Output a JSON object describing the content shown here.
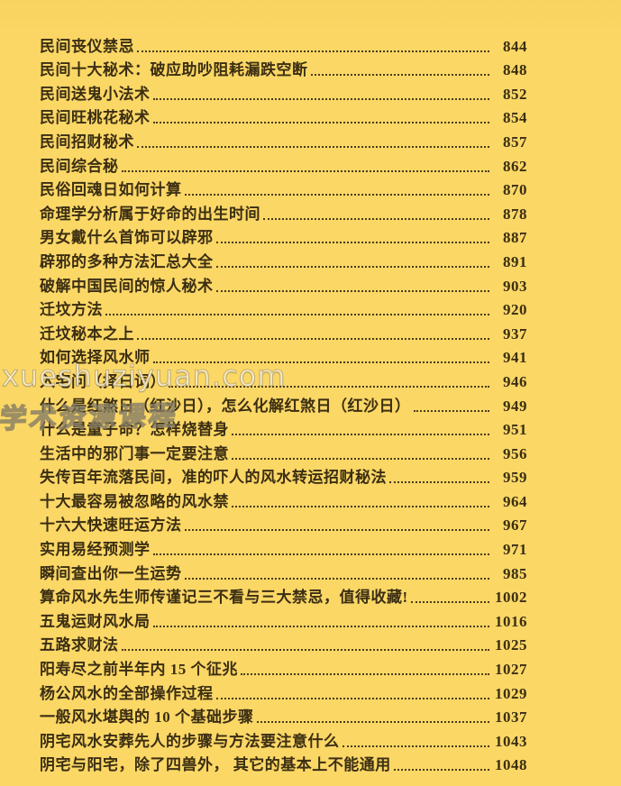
{
  "page": {
    "background_color": "#fbd766",
    "text_color": "#3b2e12",
    "dot_leader_color": "#4a3a18"
  },
  "watermarks": {
    "url_text": "xueshuziyuan.com",
    "course_text": "学术资源课程"
  },
  "toc": {
    "entries": [
      {
        "title": "民间丧仪禁忌",
        "page": "844"
      },
      {
        "title": "民间十大秘术：破应助吵阻耗漏跌空断",
        "page": "848"
      },
      {
        "title": "民间送鬼小法术",
        "page": "852"
      },
      {
        "title": "民间旺桃花秘术",
        "page": "854"
      },
      {
        "title": "民间招财秘术",
        "page": "857"
      },
      {
        "title": "民间综合秘",
        "page": "862"
      },
      {
        "title": "民俗回魂日如何计算",
        "page": "870"
      },
      {
        "title": "命理学分析属于好命的出生时间",
        "page": "878"
      },
      {
        "title": "男女戴什么首饰可以辟邪",
        "page": "887"
      },
      {
        "title": "辟邪的多种方法汇总大全",
        "page": "891"
      },
      {
        "title": "破解中国民间的惊人秘术",
        "page": "903"
      },
      {
        "title": "迁坟方法",
        "page": "920"
      },
      {
        "title": "迁坟秘本之上",
        "page": "937"
      },
      {
        "title": "如何选择风水师",
        "page": "941"
      },
      {
        "title": "入宅问（择日词）",
        "page": "946"
      },
      {
        "title": "什么是红煞日（红沙日），怎么化解红煞日（红沙日）",
        "page": "949"
      },
      {
        "title": "什么是童子命？怎样烧替身",
        "page": "951"
      },
      {
        "title": "生活中的邪门事一定要注意",
        "page": "956"
      },
      {
        "title": "失传百年流落民间，准的吓人的风水转运招财秘法",
        "page": "959"
      },
      {
        "title": "十大最容易被忽略的风水禁",
        "page": "964"
      },
      {
        "title": "十六大快速旺运方法",
        "page": "967"
      },
      {
        "title": "实用易经预测学",
        "page": "971"
      },
      {
        "title": "瞬间查出你一生运势",
        "page": "985"
      },
      {
        "title": "算命风水先生师传谨记三不看与三大禁忌，值得收藏!",
        "page": "1002"
      },
      {
        "title": "五鬼运财风水局",
        "page": "1016"
      },
      {
        "title": "五路求财法",
        "page": "1025"
      },
      {
        "title": "阳寿尽之前半年内 15 个征兆",
        "page": "1027"
      },
      {
        "title": "杨公风水的全部操作过程",
        "page": "1029"
      },
      {
        "title": "一般风水堪舆的 10 个基础步骤",
        "page": "1037"
      },
      {
        "title": "阴宅风水安葬先人的步骤与方法要注意什么",
        "page": "1043"
      },
      {
        "title": "阴宅与阳宅，除了四兽外， 其它的基本上不能通用",
        "page": "1048"
      }
    ]
  }
}
